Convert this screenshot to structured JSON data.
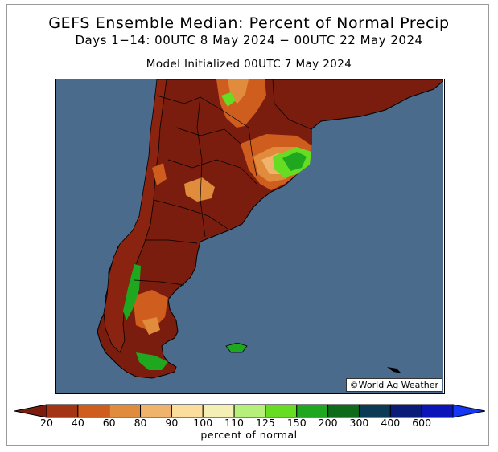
{
  "title": "GEFS Ensemble Median: Percent of Normal Precip",
  "subtitle": "Days 1−14: 00UTC 8 May 2024 − 00UTC 22 May 2024",
  "init": "Model Initialized 00UTC 7 May 2024",
  "credit": "©World Ag Weather",
  "colorbar": {
    "label": "percent of normal",
    "ticks": [
      "20",
      "40",
      "60",
      "80",
      "90",
      "100",
      "110",
      "125",
      "150",
      "200",
      "300",
      "400",
      "600"
    ],
    "colors": [
      "#7a1c0e",
      "#a33414",
      "#cf5d1d",
      "#e08c3c",
      "#f0b36b",
      "#fbdd9c",
      "#f4f0b5",
      "#b6f07a",
      "#66dd22",
      "#1fa81f",
      "#0e6b1a",
      "#0b3a55",
      "#0a1c77",
      "#0b14b9",
      "#1438f5"
    ]
  },
  "map": {
    "ocean": "#4a6b8c",
    "dry": "#7a1c0e",
    "wet": "#1fa81f"
  }
}
